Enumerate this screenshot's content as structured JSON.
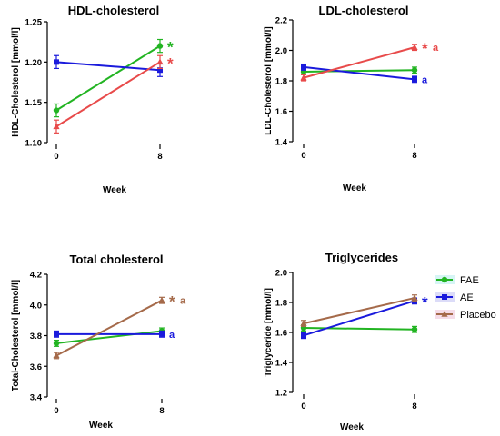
{
  "chart_data": [
    {
      "type": "line",
      "title": "HDL-cholesterol",
      "xlabel": "Week",
      "ylabel": "HDL-Cholesterol [mmol/l]",
      "x": [
        0,
        8
      ],
      "xticks": [
        "0",
        "8"
      ],
      "ylim": [
        1.1,
        1.25
      ],
      "yticks": [
        "1.10",
        "1.15",
        "1.20",
        "1.25"
      ],
      "grid": false,
      "series": [
        {
          "name": "FAE",
          "color": "#22b422",
          "marker": "circle",
          "values": [
            1.14,
            1.22
          ],
          "errors": [
            0.008,
            0.008
          ],
          "annotation": "*"
        },
        {
          "name": "AE",
          "color": "#1a1adc",
          "marker": "square",
          "values": [
            1.2,
            1.19
          ],
          "errors": [
            0.008,
            0.008
          ],
          "annotation": ""
        },
        {
          "name": "Placebo",
          "color": "#e84a4a",
          "marker": "triangle",
          "values": [
            1.12,
            1.2
          ],
          "errors": [
            0.008,
            0.008
          ],
          "annotation": "*"
        }
      ]
    },
    {
      "type": "line",
      "title": "LDL-cholesterol",
      "xlabel": "Week",
      "ylabel": "LDL-Cholesterol [mmol/l]",
      "x": [
        0,
        8
      ],
      "xticks": [
        "0",
        "8"
      ],
      "ylim": [
        1.4,
        2.2
      ],
      "yticks": [
        "1.4",
        "1.6",
        "1.8",
        "2.0",
        "2.2"
      ],
      "grid": false,
      "series": [
        {
          "name": "FAE",
          "color": "#22b422",
          "marker": "circle",
          "values": [
            1.86,
            1.87
          ],
          "errors": [
            0.02,
            0.02
          ],
          "annotation": ""
        },
        {
          "name": "AE",
          "color": "#1a1adc",
          "marker": "square",
          "values": [
            1.89,
            1.81
          ],
          "errors": [
            0.02,
            0.02
          ],
          "annotation": "a"
        },
        {
          "name": "Placebo",
          "color": "#e84a4a",
          "marker": "triangle",
          "values": [
            1.82,
            2.02
          ],
          "errors": [
            0.02,
            0.02
          ],
          "annotation": "* a"
        }
      ]
    },
    {
      "type": "line",
      "title": "Total cholesterol",
      "xlabel": "Week",
      "ylabel": "Total-Cholesterol [mmol/l]",
      "x": [
        0,
        8
      ],
      "xticks": [
        "0",
        "8"
      ],
      "ylim": [
        3.4,
        4.2
      ],
      "yticks": [
        "3.4",
        "3.6",
        "3.8",
        "4.0",
        "4.2"
      ],
      "grid": false,
      "series": [
        {
          "name": "FAE",
          "color": "#22b422",
          "marker": "circle",
          "values": [
            3.75,
            3.83
          ],
          "errors": [
            0.02,
            0.02
          ],
          "annotation": ""
        },
        {
          "name": "AE",
          "color": "#1a1adc",
          "marker": "square",
          "values": [
            3.81,
            3.81
          ],
          "errors": [
            0.02,
            0.02
          ],
          "annotation": "a"
        },
        {
          "name": "Placebo",
          "color": "#a56a4a",
          "marker": "triangle",
          "values": [
            3.67,
            4.03
          ],
          "errors": [
            0.02,
            0.02
          ],
          "annotation": "* a"
        }
      ]
    },
    {
      "type": "line",
      "title": "Triglycerides",
      "xlabel": "Week",
      "ylabel": "Triglyceride [mmol/l]",
      "x": [
        0,
        8
      ],
      "xticks": [
        "0",
        "8"
      ],
      "ylim": [
        1.2,
        2.0
      ],
      "yticks": [
        "1.2",
        "1.4",
        "1.6",
        "1.8",
        "2.0"
      ],
      "grid": false,
      "series": [
        {
          "name": "FAE",
          "color": "#22b422",
          "marker": "circle",
          "values": [
            1.63,
            1.62
          ],
          "errors": [
            0.02,
            0.02
          ],
          "annotation": ""
        },
        {
          "name": "AE",
          "color": "#1a1adc",
          "marker": "square",
          "values": [
            1.58,
            1.81
          ],
          "errors": [
            0.02,
            0.02
          ],
          "annotation": "*"
        },
        {
          "name": "Placebo",
          "color": "#a56a4a",
          "marker": "triangle",
          "values": [
            1.66,
            1.83
          ],
          "errors": [
            0.02,
            0.02
          ],
          "annotation": ""
        }
      ]
    }
  ],
  "legend": {
    "placement": "right of Triglycerides panel",
    "entries": [
      {
        "label": "FAE",
        "color": "#22b422",
        "marker": "circle"
      },
      {
        "label": "AE",
        "color": "#1a1adc",
        "marker": "square"
      },
      {
        "label": "Placebo",
        "color": "#a56a4a",
        "marker": "triangle"
      }
    ]
  }
}
